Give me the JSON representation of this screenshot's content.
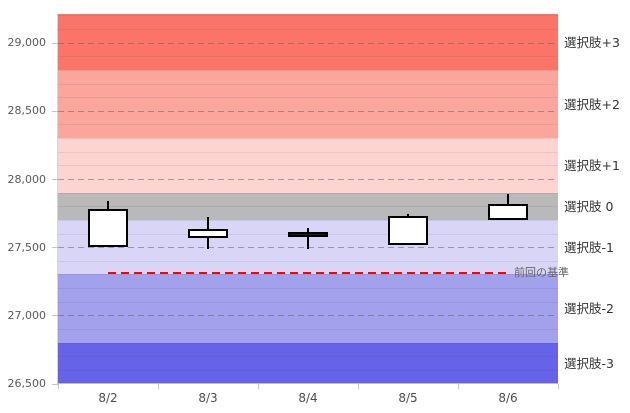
{
  "chart_data": {
    "type": "candlestick",
    "title": "",
    "categories": [
      "8/2",
      "8/3",
      "8/4",
      "8/5",
      "8/6"
    ],
    "candles": [
      {
        "date": "8/2",
        "open": 27500,
        "close": 27780,
        "high": 27840,
        "low": 27500,
        "fill": "white"
      },
      {
        "date": "8/3",
        "open": 27570,
        "close": 27630,
        "high": 27720,
        "low": 27490,
        "fill": "white"
      },
      {
        "date": "8/4",
        "open": 27610,
        "close": 27580,
        "high": 27640,
        "low": 27490,
        "fill": "black"
      },
      {
        "date": "8/5",
        "open": 27515,
        "close": 27730,
        "high": 27745,
        "low": 27515,
        "fill": "white"
      },
      {
        "date": "8/6",
        "open": 27700,
        "close": 27815,
        "high": 27890,
        "low": 27700,
        "fill": "white"
      }
    ],
    "y_axis": {
      "min": 26500,
      "max": 29210,
      "major_ticks": [
        26500,
        27000,
        27500,
        28000,
        28500,
        29000
      ],
      "tick_labels": [
        "26,500",
        "27,000",
        "27,500",
        "28,000",
        "28,500",
        "29,000"
      ],
      "minor_step": 100,
      "grid": "dashed-major-plus-minor"
    },
    "bands": [
      {
        "key": "plus3",
        "label": "選択肢+3",
        "from": 28800,
        "to": 29210,
        "color": "#fa7467"
      },
      {
        "key": "plus2",
        "label": "選択肢+2",
        "from": 28300,
        "to": 28800,
        "color": "#fba69c"
      },
      {
        "key": "plus1",
        "label": "選択肢+1",
        "from": 27900,
        "to": 28300,
        "color": "#fdd4d0"
      },
      {
        "key": "zero",
        "label": "選択肢 0",
        "from": 27700,
        "to": 27900,
        "color": "#b9b9b9"
      },
      {
        "key": "minus1",
        "label": "選択肢-1",
        "from": 27300,
        "to": 27700,
        "color": "#d8d5f6"
      },
      {
        "key": "minus2",
        "label": "選択肢-2",
        "from": 26800,
        "to": 27300,
        "color": "#a3a0ec"
      },
      {
        "key": "minus3",
        "label": "選択肢-3",
        "from": 26500,
        "to": 26800,
        "color": "#6663e8"
      }
    ],
    "baseline": {
      "label": "前回の基準",
      "value": 27300,
      "color": "#fe0000",
      "x_from_category": "8/2",
      "x_to_category": "8/6"
    },
    "legend_position": "right-of-plot",
    "colors": {
      "candle_up_fill": "#ffffff",
      "candle_down_fill": "#1f1f1f",
      "candle_border": "#000000",
      "axis_text": "#595959"
    }
  }
}
